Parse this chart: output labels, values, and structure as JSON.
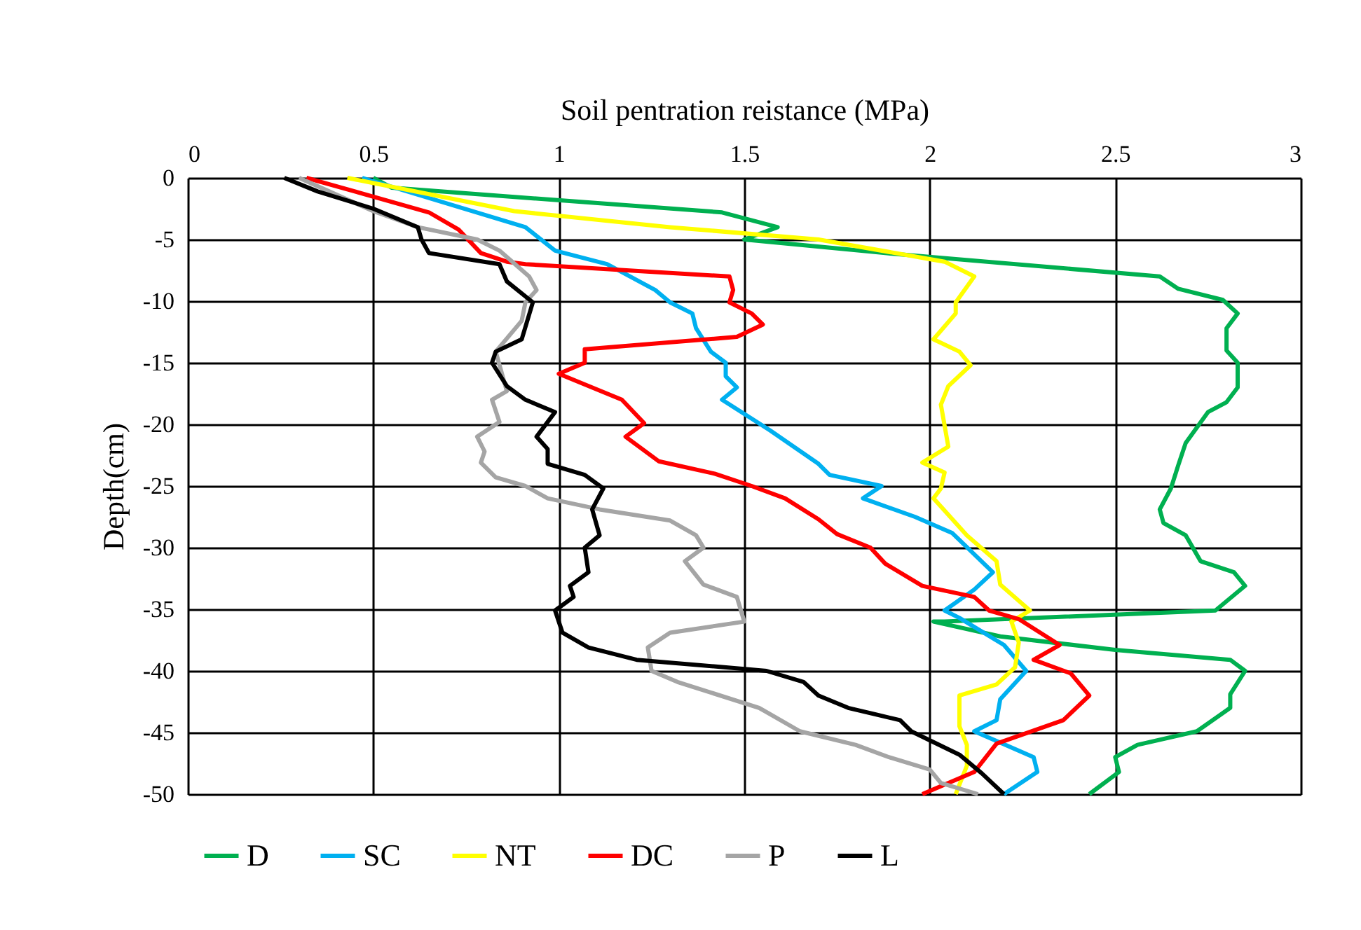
{
  "chart_data": {
    "type": "line",
    "xlabel": "Soil pentration reistance (MPa)",
    "ylabel": "Depth(cm)",
    "xlim": [
      0,
      3
    ],
    "xticks": [
      0,
      0.5,
      1,
      1.5,
      2,
      2.5,
      3
    ],
    "ylim": [
      -50,
      0
    ],
    "yticks": [
      0,
      -5,
      -10,
      -15,
      -20,
      -25,
      -30,
      -35,
      -40,
      -45,
      -50
    ],
    "grid": true,
    "legend": "bottom",
    "line_style": "solid",
    "series": [
      {
        "name": "D",
        "color": "#00b050",
        "x": [
          0.5,
          0.55,
          1.44,
          1.59,
          1.5,
          1.88,
          2.62,
          2.67,
          2.79,
          2.83,
          2.8,
          2.8,
          2.83,
          2.83,
          2.8,
          2.75,
          2.69,
          2.67,
          2.65,
          2.62,
          2.63,
          2.69,
          2.73,
          2.82,
          2.85,
          2.77,
          2.04,
          2.01,
          2.19,
          2.5,
          2.81,
          2.85,
          2.81,
          2.81,
          2.72,
          2.56,
          2.5,
          2.51,
          2.43
        ],
        "values": [
          0,
          -0.8,
          -2.8,
          -4,
          -5,
          -6.1,
          -8,
          -9,
          -9.9,
          -11,
          -12.2,
          -14,
          -15,
          -17,
          -18.2,
          -19,
          -21.5,
          -23.3,
          -25.2,
          -26.9,
          -28,
          -29,
          -31.1,
          -32,
          -33.1,
          -35.1,
          -36,
          -36,
          -37.2,
          -38.3,
          -39.1,
          -40,
          -41.9,
          -43,
          -44.9,
          -46,
          -47,
          -48.2,
          -50
        ]
      },
      {
        "name": "SC",
        "color": "#00b0f0",
        "x": [
          0.47,
          0.91,
          0.99,
          1.13,
          1.26,
          1.3,
          1.36,
          1.37,
          1.41,
          1.45,
          1.45,
          1.48,
          1.44,
          1.57,
          1.7,
          1.73,
          1.87,
          1.82,
          1.96,
          2.06,
          2.17,
          2.12,
          2.04,
          2.08,
          2.2,
          2.26,
          2.19,
          2.18,
          2.12,
          2.28,
          2.29,
          2.2
        ],
        "values": [
          0,
          -4,
          -5.9,
          -7,
          -9.1,
          -10.1,
          -11,
          -12.2,
          -14.1,
          -15,
          -16.1,
          -17,
          -18,
          -20.5,
          -23.2,
          -24.1,
          -25,
          -26,
          -27.5,
          -28.8,
          -32,
          -33.4,
          -35.1,
          -35.7,
          -37.9,
          -40,
          -42.3,
          -44,
          -44.9,
          -47,
          -48.2,
          -50
        ]
      },
      {
        "name": "NT",
        "color": "#ffff00",
        "x": [
          0.43,
          0.88,
          1.3,
          1.7,
          2.04,
          2.12,
          2.07,
          2.07,
          2.01,
          2.08,
          2.11,
          2.05,
          2.03,
          2.05,
          1.98,
          2.04,
          2.03,
          2.01,
          2.1,
          2.18,
          2.19,
          2.27,
          2.22,
          2.24,
          2.23,
          2.18,
          2.08,
          2.08,
          2.1,
          2.1,
          2.07
        ],
        "values": [
          0,
          -2.7,
          -4,
          -5,
          -6.8,
          -8,
          -10.1,
          -11,
          -13.1,
          -14.1,
          -15.2,
          -16.9,
          -18.4,
          -21.8,
          -23.1,
          -23.9,
          -25.2,
          -26,
          -29,
          -31.1,
          -33,
          -35.1,
          -36,
          -37.7,
          -39.7,
          -41.1,
          -42,
          -44.5,
          -46,
          -47.7,
          -50
        ]
      },
      {
        "name": "DC",
        "color": "#ff0000",
        "x": [
          0.32,
          0.65,
          0.73,
          0.79,
          0.86,
          0.91,
          1.46,
          1.47,
          1.46,
          1.52,
          1.55,
          1.48,
          1.07,
          1.07,
          1.0,
          1.17,
          1.23,
          1.18,
          1.27,
          1.42,
          1.52,
          1.61,
          1.7,
          1.75,
          1.84,
          1.88,
          1.98,
          2.12,
          2.16,
          2.24,
          2.35,
          2.28,
          2.38,
          2.43,
          2.36,
          2.18,
          2.12,
          1.98
        ],
        "values": [
          0,
          -2.8,
          -4.2,
          -6.1,
          -6.8,
          -7,
          -8,
          -9.1,
          -10.1,
          -11,
          -11.9,
          -12.9,
          -13.9,
          -15,
          -15.9,
          -18,
          -19.9,
          -21,
          -23,
          -24,
          -25,
          -26,
          -27.7,
          -28.9,
          -30,
          -31.3,
          -33.1,
          -34,
          -35.1,
          -35.8,
          -37.9,
          -39.1,
          -40.2,
          -42,
          -44,
          -45.9,
          -48.2,
          -50
        ]
      },
      {
        "name": "P",
        "color": "#a5a5a5",
        "x": [
          0.3,
          0.5,
          0.62,
          0.78,
          0.84,
          0.92,
          0.94,
          0.91,
          0.9,
          0.83,
          0.86,
          0.82,
          0.84,
          0.78,
          0.8,
          0.79,
          0.83,
          0.91,
          0.97,
          1.11,
          1.3,
          1.37,
          1.39,
          1.34,
          1.39,
          1.48,
          1.5,
          1.3,
          1.24,
          1.25,
          1.32,
          1.54,
          1.65,
          1.8,
          1.89,
          2.0,
          2.03,
          2.13
        ],
        "values": [
          0,
          -2.7,
          -4,
          -5,
          -5.9,
          -8,
          -9.1,
          -10.1,
          -11.6,
          -14.1,
          -17.3,
          -18,
          -19.8,
          -21,
          -22.2,
          -23.1,
          -24.3,
          -25,
          -26,
          -26.9,
          -27.8,
          -29,
          -30,
          -31.1,
          -33,
          -34,
          -36,
          -36.9,
          -38.1,
          -40,
          -40.9,
          -43,
          -44.9,
          -46,
          -47,
          -48,
          -49.1,
          -50
        ]
      },
      {
        "name": "L",
        "color": "#000000",
        "x": [
          0.26,
          0.35,
          0.5,
          0.62,
          0.63,
          0.65,
          0.84,
          0.86,
          0.93,
          0.9,
          0.83,
          0.82,
          0.86,
          0.91,
          0.99,
          0.94,
          0.97,
          0.97,
          1.07,
          1.12,
          1.09,
          1.11,
          1.07,
          1.08,
          1.03,
          1.04,
          0.99,
          1.01,
          1.08,
          1.21,
          1.56,
          1.66,
          1.7,
          1.78,
          1.92,
          1.95,
          2.08,
          2.14,
          2.2
        ],
        "values": [
          0,
          -1.1,
          -2.5,
          -4,
          -5,
          -6.1,
          -7,
          -8.4,
          -10.1,
          -13.1,
          -14.1,
          -15,
          -16.9,
          -18,
          -19,
          -21,
          -22,
          -23.2,
          -24.1,
          -25.2,
          -26.9,
          -29,
          -30,
          -32,
          -33.1,
          -34,
          -35.1,
          -36.9,
          -38.1,
          -39.1,
          -40,
          -40.9,
          -42,
          -43,
          -44,
          -44.9,
          -46.8,
          -48.3,
          -50
        ]
      }
    ]
  }
}
